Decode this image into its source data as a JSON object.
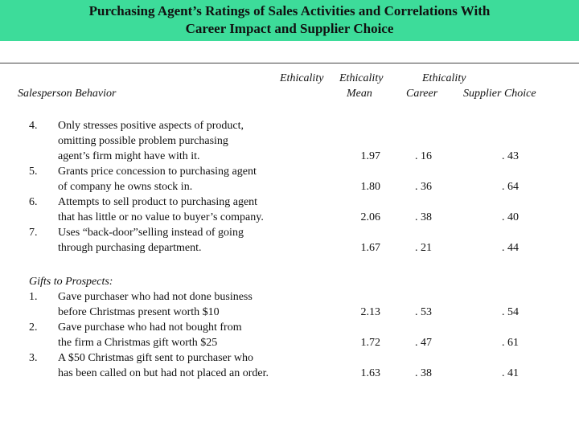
{
  "title": {
    "line1": "Purchasing Agent’s Ratings of Sales Activities and Correlations With",
    "line2": "Career Impact and Supplier Choice"
  },
  "header": {
    "eth1": "Ethicality",
    "eth2": "Ethicality",
    "eth3": "Ethicality",
    "mean": "Mean",
    "career": "Career",
    "supplier": "Supplier Choice",
    "behavior": "Salesperson Behavior"
  },
  "rows1": [
    {
      "num": "4.",
      "lines": [
        "Only stresses positive aspects of product,",
        "omitting possible problem purchasing",
        "agent’s firm might have with it."
      ],
      "mean": "1.97",
      "career": ". 16",
      "supplier": ". 43"
    },
    {
      "num": "5.",
      "lines": [
        "Grants price concession to purchasing agent",
        "of company he owns stock in."
      ],
      "mean": "1.80",
      "career": ". 36",
      "supplier": ". 64"
    },
    {
      "num": "6.",
      "lines": [
        "Attempts to sell product to purchasing agent",
        "that has little or no value to buyer’s company."
      ],
      "mean": "2.06",
      "career": ". 38",
      "supplier": ". 40"
    },
    {
      "num": "7.",
      "lines": [
        "Uses “back-door”selling instead of going",
        "through purchasing department."
      ],
      "mean": "1.67",
      "career": ". 21",
      "supplier": ". 44"
    }
  ],
  "gifts_heading": "Gifts to Prospects:",
  "rows2": [
    {
      "num": "1.",
      "lines": [
        "Gave purchaser who had not done business",
        "before Christmas present worth $10"
      ],
      "mean": "2.13",
      "career": ". 53",
      "supplier": ". 54"
    },
    {
      "num": "2.",
      "lines": [
        "Gave purchase who had not bought from",
        "the firm a Christmas gift worth $25"
      ],
      "mean": "1.72",
      "career": ". 47",
      "supplier": ". 61"
    },
    {
      "num": "3.",
      "lines": [
        "A $50 Christmas gift sent to purchaser who",
        "has been called on but had not placed an order."
      ],
      "mean": "1.63",
      "career": ". 38",
      "supplier": ". 41"
    }
  ]
}
